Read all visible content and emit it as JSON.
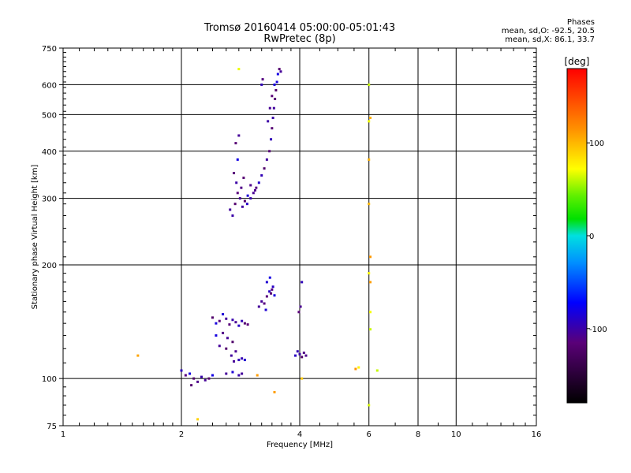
{
  "chart_data": {
    "type": "scatter",
    "title": "Tromsø 20160414 05:00:00-05:01:43",
    "subtitle": "RwPretec (8p)",
    "xlabel": "Frequency [MHz]",
    "ylabel": "Stationary phase Virtual Height [km]",
    "x_scale": "log",
    "y_scale": "log",
    "xlim": [
      1,
      16
    ],
    "ylim": [
      75,
      750
    ],
    "x_ticks": [
      1,
      2,
      4,
      6,
      8,
      10,
      16
    ],
    "x_tick_labels": [
      "1",
      "2",
      "4",
      "6",
      "8",
      "10",
      "16"
    ],
    "y_ticks": [
      75,
      100,
      200,
      300,
      400,
      500,
      600,
      750
    ],
    "y_tick_labels": [
      "75",
      "100",
      "200",
      "300",
      "400",
      "500",
      "600",
      "750"
    ],
    "grid": true,
    "phase_info": {
      "header": "Phases",
      "line_o": "mean, sd,O: -92.5, 20.5",
      "line_x": "mean, sd,X:  86.1, 33.7"
    },
    "colorbar": {
      "label": "[deg]",
      "range": [
        -180,
        180
      ],
      "ticks": [
        100,
        0,
        -100
      ],
      "tick_labels": [
        "100",
        "0",
        "-100"
      ]
    },
    "series": [
      {
        "points": [
          [
            2.66,
            280
          ],
          [
            2.7,
            270
          ],
          [
            2.74,
            290
          ],
          [
            2.78,
            310
          ],
          [
            2.82,
            300
          ],
          [
            2.86,
            285
          ],
          [
            2.9,
            295
          ],
          [
            2.95,
            305
          ],
          [
            3.0,
            300
          ],
          [
            3.05,
            310
          ],
          [
            3.1,
            320
          ],
          [
            3.15,
            330
          ],
          [
            3.2,
            345
          ],
          [
            3.25,
            360
          ],
          [
            3.3,
            380
          ],
          [
            3.35,
            400
          ],
          [
            3.38,
            430
          ],
          [
            3.4,
            460
          ],
          [
            3.42,
            490
          ],
          [
            3.44,
            520
          ],
          [
            3.46,
            550
          ],
          [
            3.48,
            580
          ],
          [
            3.5,
            610
          ],
          [
            3.52,
            640
          ],
          [
            3.55,
            660
          ],
          [
            3.58,
            650
          ],
          [
            3.45,
            600
          ],
          [
            3.4,
            560
          ],
          [
            3.36,
            520
          ],
          [
            3.32,
            480
          ],
          [
            3.2,
            600
          ],
          [
            3.22,
            620
          ],
          [
            2.75,
            420
          ],
          [
            2.78,
            380
          ],
          [
            2.8,
            440
          ],
          [
            2.72,
            350
          ],
          [
            2.76,
            330
          ],
          [
            2.84,
            320
          ],
          [
            2.88,
            340
          ],
          [
            2.94,
            290
          ],
          [
            3.0,
            325
          ],
          [
            3.08,
            315
          ]
        ]
      },
      {
        "points": [
          [
            2.4,
            145
          ],
          [
            2.45,
            140
          ],
          [
            2.5,
            142
          ],
          [
            2.55,
            148
          ],
          [
            2.6,
            144
          ],
          [
            2.65,
            139
          ],
          [
            2.7,
            143
          ],
          [
            2.75,
            141
          ],
          [
            2.8,
            138
          ],
          [
            2.85,
            142
          ],
          [
            2.9,
            140
          ],
          [
            2.95,
            139
          ],
          [
            2.5,
            122
          ],
          [
            2.6,
            120
          ],
          [
            2.7,
            125
          ],
          [
            2.75,
            118
          ],
          [
            2.8,
            112
          ],
          [
            2.85,
            113
          ],
          [
            2.45,
            130
          ],
          [
            2.55,
            132
          ],
          [
            2.62,
            128
          ],
          [
            2.68,
            115
          ],
          [
            2.72,
            111
          ],
          [
            2.9,
            112
          ]
        ]
      },
      {
        "points": [
          [
            3.15,
            155
          ],
          [
            3.2,
            160
          ],
          [
            3.25,
            158
          ],
          [
            3.3,
            165
          ],
          [
            3.35,
            170
          ],
          [
            3.38,
            168
          ],
          [
            3.4,
            172
          ],
          [
            3.42,
            175
          ],
          [
            3.3,
            180
          ],
          [
            3.36,
            185
          ],
          [
            3.45,
            166
          ],
          [
            3.28,
            152
          ]
        ]
      },
      {
        "points": [
          [
            3.9,
            115
          ],
          [
            3.95,
            118
          ],
          [
            4.0,
            116
          ],
          [
            4.05,
            114
          ],
          [
            4.1,
            117
          ],
          [
            4.15,
            115
          ],
          [
            3.98,
            150
          ],
          [
            4.02,
            155
          ],
          [
            4.05,
            180
          ]
        ]
      },
      {
        "points": [
          [
            2.0,
            105
          ],
          [
            2.05,
            102
          ],
          [
            2.1,
            103
          ],
          [
            2.15,
            100
          ],
          [
            2.2,
            98
          ],
          [
            2.25,
            101
          ],
          [
            2.3,
            99
          ],
          [
            2.35,
            100
          ],
          [
            2.4,
            102
          ],
          [
            2.6,
            103
          ],
          [
            2.7,
            104
          ],
          [
            2.8,
            102
          ],
          [
            2.85,
            103
          ],
          [
            2.12,
            96
          ]
        ]
      },
      {
        "points": [
          [
            1.55,
            115
          ],
          [
            5.55,
            106
          ],
          [
            5.65,
            107
          ],
          [
            6.0,
            600
          ],
          [
            6.0,
            480
          ],
          [
            6.05,
            490
          ],
          [
            6.0,
            380
          ],
          [
            6.0,
            290
          ],
          [
            6.05,
            210
          ],
          [
            6.0,
            190
          ],
          [
            6.05,
            180
          ],
          [
            6.05,
            150
          ],
          [
            6.05,
            135
          ],
          [
            6.0,
            85
          ],
          [
            6.3,
            105
          ],
          [
            4.05,
            100
          ],
          [
            3.45,
            92
          ],
          [
            3.12,
            102
          ],
          [
            2.8,
            660
          ],
          [
            2.2,
            78
          ]
        ]
      }
    ]
  }
}
